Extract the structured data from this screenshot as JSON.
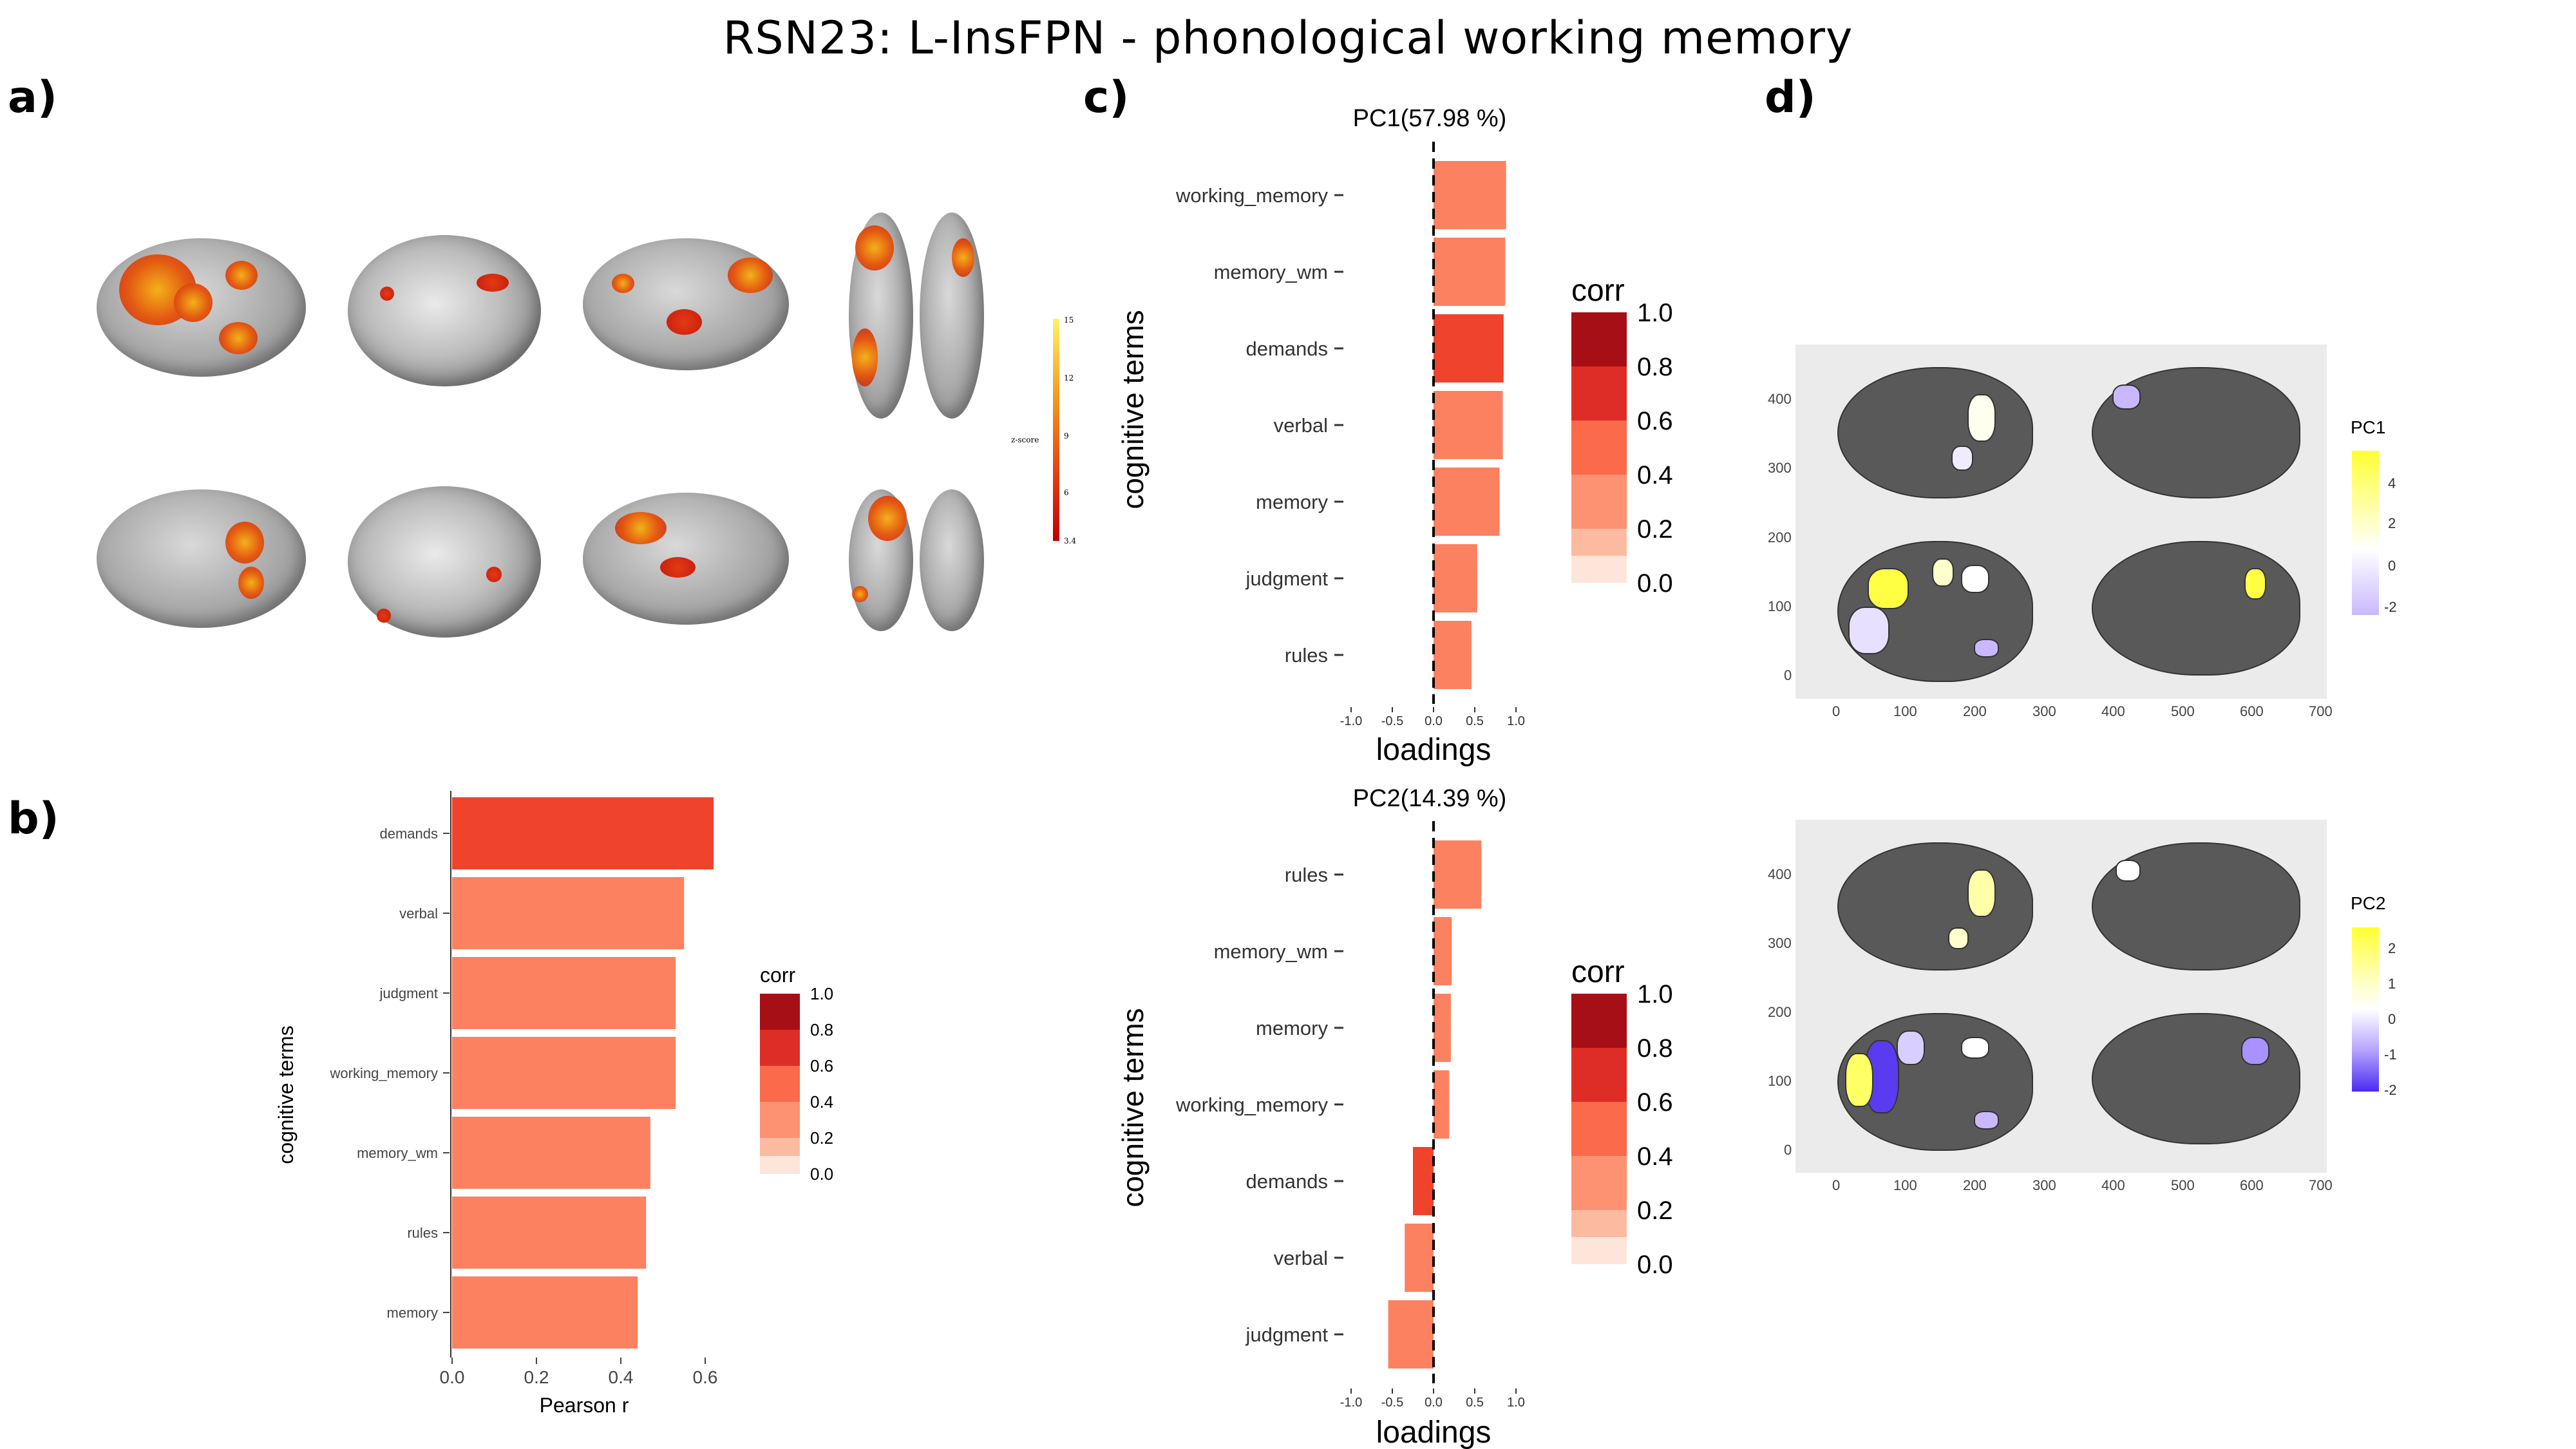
{
  "title": "RSN23: L-InsFPN - phonological working memory",
  "panel_labels": {
    "a": "a)",
    "b": "b)",
    "c": "c)",
    "d": "d)"
  },
  "colors": {
    "corr_0": "#fee5d9",
    "corr_02": "#fcbba1",
    "corr_04": "#fc9272",
    "corr_06": "#fb6a4a",
    "corr_08": "#de2d26",
    "corr_10": "#a50f15",
    "bar_main": "#fc8160",
    "bar_strong": "#f0432c",
    "brain_gray": "#595959",
    "pc_yellow": "#ffff33",
    "pc_purple": "#5b3bf0"
  },
  "panel_a": {
    "colorbar_title": "z-score",
    "colorbar_ticks": [
      "15",
      "12",
      "9",
      "6",
      "3.4"
    ]
  },
  "chart_data": [
    {
      "id": "b",
      "type": "bar",
      "orientation": "horizontal",
      "categories": [
        "demands",
        "verbal",
        "judgment",
        "working_memory",
        "memory_wm",
        "rules",
        "memory"
      ],
      "values": [
        0.62,
        0.55,
        0.53,
        0.53,
        0.47,
        0.46,
        0.44
      ],
      "corr": [
        0.62,
        0.55,
        0.53,
        0.53,
        0.47,
        0.46,
        0.44
      ],
      "xlabel": "Pearson r",
      "ylabel": "cognitive terms",
      "xlim": [
        0,
        0.65
      ],
      "x_ticks": [
        "0.0",
        "0.2",
        "0.4",
        "0.6"
      ],
      "legend": {
        "title": "corr",
        "ticks": [
          "1.0",
          "0.8",
          "0.6",
          "0.4",
          "0.2",
          "0.0"
        ],
        "placement": "right"
      }
    },
    {
      "id": "c1",
      "type": "bar",
      "orientation": "horizontal",
      "title": "PC1(57.98 %)",
      "categories": [
        "working_memory",
        "memory_wm",
        "demands",
        "verbal",
        "memory",
        "judgment",
        "rules"
      ],
      "values": [
        0.88,
        0.87,
        0.85,
        0.84,
        0.8,
        0.53,
        0.46
      ],
      "corr": [
        0.53,
        0.47,
        0.62,
        0.55,
        0.44,
        0.53,
        0.46
      ],
      "xlabel": "loadings",
      "ylabel": "cognitive terms",
      "xlim": [
        -1.0,
        1.0
      ],
      "x_ticks": [
        "-1.0",
        "-0.5",
        "0.0",
        "0.5",
        "1.0"
      ],
      "legend": {
        "title": "corr",
        "ticks": [
          "1.0",
          "0.8",
          "0.6",
          "0.4",
          "0.2",
          "0.0"
        ],
        "placement": "right"
      }
    },
    {
      "id": "c2",
      "type": "bar",
      "orientation": "horizontal",
      "title": "PC2(14.39 %)",
      "categories": [
        "rules",
        "memory_wm",
        "memory",
        "working_memory",
        "demands",
        "verbal",
        "judgment"
      ],
      "values": [
        0.58,
        0.22,
        0.21,
        0.19,
        -0.25,
        -0.35,
        -0.55
      ],
      "corr": [
        0.46,
        0.47,
        0.44,
        0.53,
        0.62,
        0.55,
        0.53
      ],
      "xlabel": "loadings",
      "ylabel": "cognitive terms",
      "xlim": [
        -1.0,
        1.0
      ],
      "x_ticks": [
        "-1.0",
        "-0.5",
        "0.0",
        "0.5",
        "1.0"
      ],
      "legend": {
        "title": "corr",
        "ticks": [
          "1.0",
          "0.8",
          "0.6",
          "0.4",
          "0.2",
          "0.0"
        ],
        "placement": "right"
      }
    }
  ],
  "panel_d": {
    "x_ticks": [
      "0",
      "100",
      "200",
      "300",
      "400",
      "500",
      "600",
      "700"
    ],
    "y_ticks": [
      "400",
      "300",
      "200",
      "100",
      "0"
    ],
    "pc1_legend": {
      "title": "PC1",
      "ticks": [
        "4",
        "2",
        "0",
        "-2"
      ]
    },
    "pc2_legend": {
      "title": "PC2",
      "ticks": [
        "2",
        "1",
        "0",
        "-1",
        "-2"
      ]
    }
  }
}
